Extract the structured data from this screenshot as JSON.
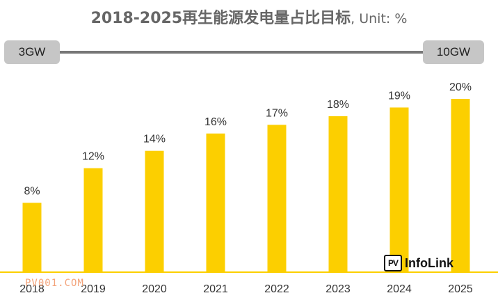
{
  "header": {
    "title": "2018-2025再生能源发电量占比目标",
    "unit_note": ", Unit: %"
  },
  "capacity_timeline": {
    "start_label": "3GW",
    "end_label": "10GW",
    "line_color": "#777777",
    "box_color": "#c6c6c6"
  },
  "chart_data": {
    "type": "bar",
    "title": "2018-2025再生能源发电量占比目标, Unit: %",
    "categories": [
      "2018",
      "2019",
      "2020",
      "2021",
      "2022",
      "2023",
      "2024",
      "2025"
    ],
    "values": [
      8,
      12,
      14,
      16,
      17,
      18,
      19,
      20
    ],
    "data_labels": [
      "8%",
      "12%",
      "14%",
      "16%",
      "17%",
      "18%",
      "19%",
      "20%"
    ],
    "ylim": [
      0,
      20
    ],
    "grid": false,
    "bar_color": "#fccf00",
    "baseline_color": "#fccf00"
  },
  "logo": {
    "mark": "PV",
    "name": "InfoLink"
  },
  "watermark": {
    "text": "PV001.COM"
  }
}
